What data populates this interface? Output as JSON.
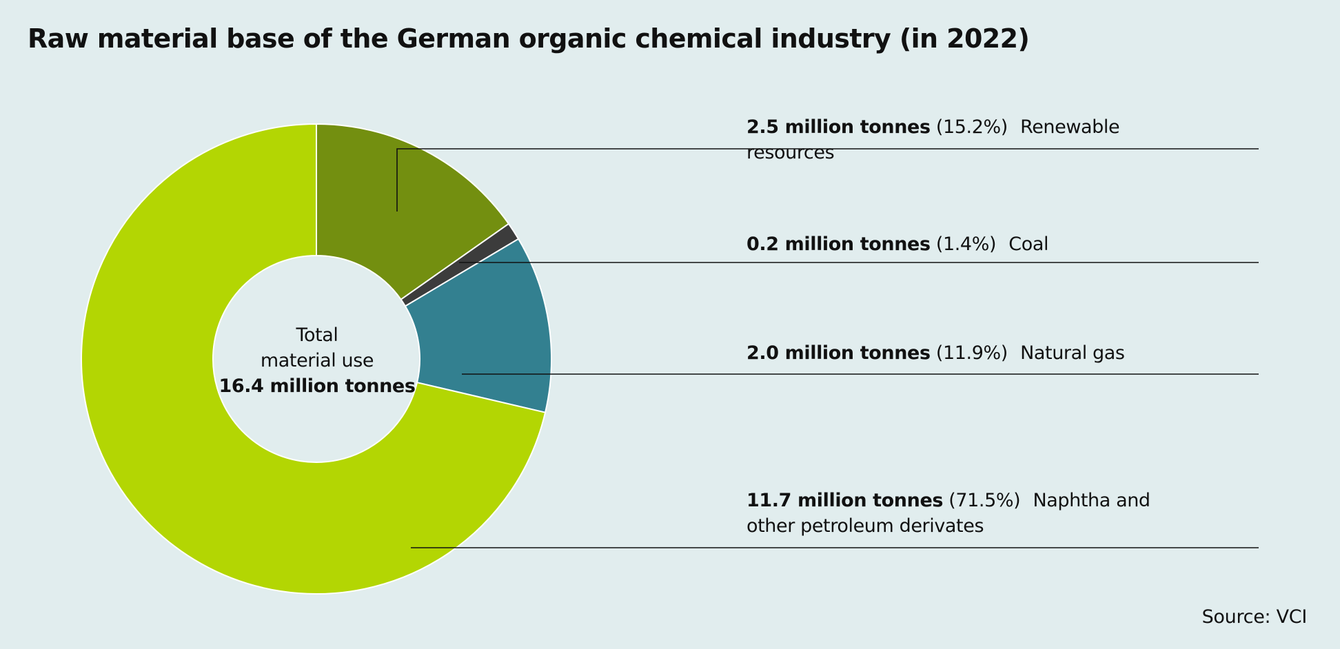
{
  "chart_data": {
    "type": "pie",
    "title": "Raw material base of the German organic chemical industry (in 2022)",
    "center_label": {
      "line1": "Total",
      "line2": "material use",
      "value": "16.4 million tonnes"
    },
    "slices": [
      {
        "label": "Renewable resources",
        "value": 2.5,
        "value_text": "2.5 million tonnes",
        "percent": 15.2,
        "percent_text": "(15.2%)",
        "color": "#738f10"
      },
      {
        "label": "Coal",
        "value": 0.2,
        "value_text": "0.2 million tonnes",
        "percent": 1.4,
        "percent_text": "(1.4%)",
        "color": "#3c3c3c"
      },
      {
        "label": "Natural gas",
        "value": 2.0,
        "value_text": "2.0 million tonnes",
        "percent": 11.9,
        "percent_text": "(11.9%)",
        "color": "#338090"
      },
      {
        "label": "Naphtha and other petroleum derivates",
        "value": 11.7,
        "value_text": "11.7 million tonnes",
        "percent": 71.5,
        "percent_text": "(71.5%)",
        "color": "#b3d603"
      }
    ],
    "source": "Source: VCI"
  }
}
